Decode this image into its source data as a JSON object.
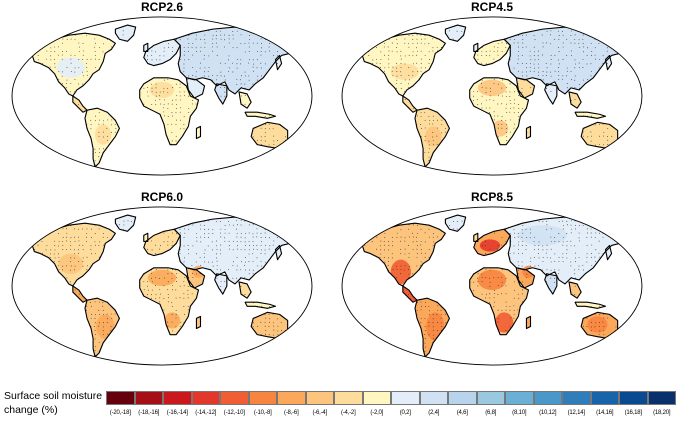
{
  "panels": [
    {
      "title": "RCP2.6",
      "scheme": "mild"
    },
    {
      "title": "RCP4.5",
      "scheme": "moderate"
    },
    {
      "title": "RCP6.0",
      "scheme": "strong"
    },
    {
      "title": "RCP8.5",
      "scheme": "severe"
    }
  ],
  "legend": {
    "title_line1": "Surface soil moisture",
    "title_line2": "change (%)",
    "bins": [
      {
        "label": "(-20,-18]",
        "color": "#67000d"
      },
      {
        "label": "(-18,-16]",
        "color": "#a50f15"
      },
      {
        "label": "(-16,-14]",
        "color": "#cb181d"
      },
      {
        "label": "(-14,-12]",
        "color": "#e3372c"
      },
      {
        "label": "(-12,-10]",
        "color": "#f15e33"
      },
      {
        "label": "(-10,-8]",
        "color": "#f7843f"
      },
      {
        "label": "(-8,-6]",
        "color": "#fba85a"
      },
      {
        "label": "(-6,-4]",
        "color": "#fdc47d"
      },
      {
        "label": "(-4,-2]",
        "color": "#fedd9c"
      },
      {
        "label": "(-2,0]",
        "color": "#fff6c2"
      },
      {
        "label": "(0,2]",
        "color": "#e3eef9"
      },
      {
        "label": "(2,4]",
        "color": "#cfe1f2"
      },
      {
        "label": "(4,6]",
        "color": "#b8d4ec"
      },
      {
        "label": "(6,8]",
        "color": "#9ac8e0"
      },
      {
        "label": "(8,10]",
        "color": "#6baed6"
      },
      {
        "label": "(10,12]",
        "color": "#4a98c9"
      },
      {
        "label": "(12,14]",
        "color": "#2f7ebc"
      },
      {
        "label": "(14,16]",
        "color": "#1764ab"
      },
      {
        "label": "(16,18]",
        "color": "#0a4a90"
      },
      {
        "label": "(18,20]",
        "color": "#08306b"
      }
    ]
  }
}
